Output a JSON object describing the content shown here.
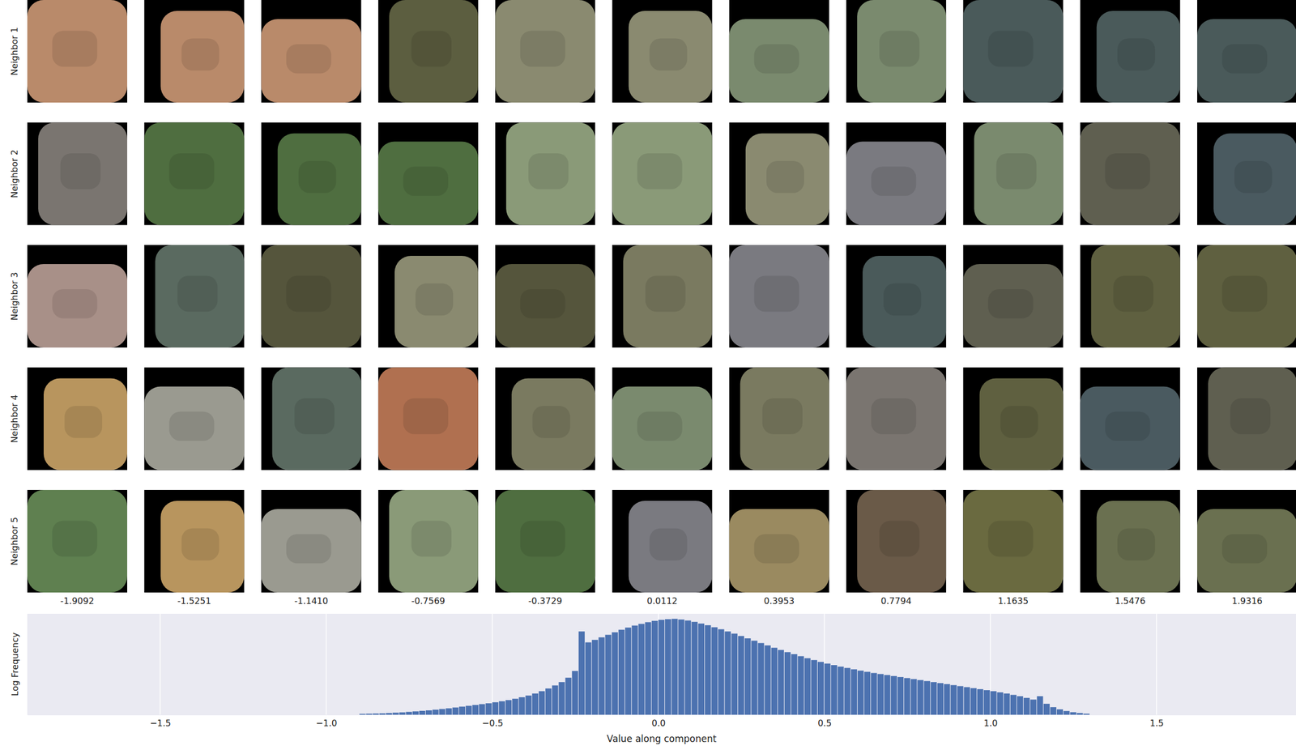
{
  "chart_data": {
    "type": "histogram",
    "rows": [
      "Neighbor 1",
      "Neighbor 2",
      "Neighbor 3",
      "Neighbor 4",
      "Neighbor 5"
    ],
    "columns": [
      {
        "value": -1.9092,
        "label": "-1.9092"
      },
      {
        "value": -1.5251,
        "label": "-1.5251"
      },
      {
        "value": -1.141,
        "label": "-1.1410"
      },
      {
        "value": -0.7569,
        "label": "-0.7569"
      },
      {
        "value": -0.3729,
        "label": "-0.3729"
      },
      {
        "value": 0.0112,
        "label": "0.0112"
      },
      {
        "value": 0.3953,
        "label": "0.3953"
      },
      {
        "value": 0.7794,
        "label": "0.7794"
      },
      {
        "value": 1.1635,
        "label": "1.1635"
      },
      {
        "value": 1.5476,
        "label": "1.5476"
      },
      {
        "value": 1.9316,
        "label": "1.9316"
      }
    ],
    "patch_colors": [
      [
        "#b98a6a",
        "#b98a6a",
        "#b98a6a",
        "#5c5e40",
        "#8a8a70",
        "#8a8a70",
        "#7a8a6e",
        "#7a8a6e",
        "#4a5a5a",
        "#4a5a5a",
        "#4a5a5a"
      ],
      [
        "#7a7570",
        "#4f6e40",
        "#4f6e40",
        "#4f6e40",
        "#8a9a78",
        "#8a9a78",
        "#8a8a70",
        "#7a7a80",
        "#7a8a6e",
        "#5f5f50",
        "#4a5a60"
      ],
      [
        "#a89088",
        "#5a6a60",
        "#55553c",
        "#8a8a70",
        "#55553c",
        "#7a7a60",
        "#7a7a80",
        "#4a5a5a",
        "#5f5f50",
        "#5f6040",
        "#5f6040"
      ],
      [
        "#b8955e",
        "#9a9a90",
        "#5a6a60",
        "#b07050",
        "#7a7a60",
        "#7a8a6e",
        "#7a7a60",
        "#7a7570",
        "#5f6040",
        "#4a5a60",
        "#5f5f50"
      ],
      [
        "#5f8050",
        "#b8955e",
        "#9a9a90",
        "#8a9a78",
        "#4f6e40",
        "#7a7a80",
        "#9a8a60",
        "#6a5a48",
        "#6a6a40",
        "#6a7050",
        "#6a7050"
      ]
    ],
    "bins": [
      -0.9,
      -0.88,
      -0.86,
      -0.84,
      -0.82,
      -0.8,
      -0.78,
      -0.76,
      -0.74,
      -0.72,
      -0.7,
      -0.68,
      -0.66,
      -0.64,
      -0.62,
      -0.6,
      -0.58,
      -0.56,
      -0.54,
      -0.52,
      -0.5,
      -0.48,
      -0.46,
      -0.44,
      -0.42,
      -0.4,
      -0.38,
      -0.36,
      -0.34,
      -0.32,
      -0.3,
      -0.28,
      -0.26,
      -0.24,
      -0.22,
      -0.2,
      -0.18,
      -0.16,
      -0.14,
      -0.12,
      -0.1,
      -0.08,
      -0.06,
      -0.04,
      -0.02,
      0,
      0.02,
      0.04,
      0.06,
      0.08,
      0.1,
      0.12,
      0.14,
      0.16,
      0.18,
      0.2,
      0.22,
      0.24,
      0.26,
      0.28,
      0.3,
      0.32,
      0.34,
      0.36,
      0.38,
      0.4,
      0.42,
      0.44,
      0.46,
      0.48,
      0.5,
      0.52,
      0.54,
      0.56,
      0.58,
      0.6,
      0.62,
      0.64,
      0.66,
      0.68,
      0.7,
      0.72,
      0.74,
      0.76,
      0.78,
      0.8,
      0.82,
      0.84,
      0.86,
      0.88,
      0.9,
      0.92,
      0.94,
      0.96,
      0.98,
      1,
      1.02,
      1.04,
      1.06,
      1.08,
      1.1,
      1.12,
      1.14,
      1.16,
      1.18,
      1.2,
      1.22,
      1.24,
      1.26,
      1.28,
      1.3
    ],
    "values": [
      0.05,
      0.06,
      0.07,
      0.08,
      0.1,
      0.12,
      0.14,
      0.17,
      0.2,
      0.23,
      0.26,
      0.3,
      0.34,
      0.38,
      0.43,
      0.48,
      0.53,
      0.58,
      0.63,
      0.68,
      0.74,
      0.8,
      0.87,
      0.95,
      1.04,
      1.14,
      1.26,
      1.4,
      1.56,
      1.74,
      1.94,
      2.2,
      2.6,
      4.95,
      4.3,
      4.45,
      4.6,
      4.75,
      4.9,
      5.05,
      5.18,
      5.3,
      5.4,
      5.5,
      5.58,
      5.64,
      5.68,
      5.7,
      5.66,
      5.6,
      5.52,
      5.42,
      5.32,
      5.2,
      5.08,
      4.95,
      4.82,
      4.68,
      4.54,
      4.4,
      4.26,
      4.12,
      3.98,
      3.85,
      3.72,
      3.6,
      3.48,
      3.36,
      3.25,
      3.14,
      3.04,
      2.95,
      2.86,
      2.78,
      2.7,
      2.62,
      2.55,
      2.48,
      2.42,
      2.36,
      2.3,
      2.24,
      2.18,
      2.12,
      2.06,
      2.0,
      1.94,
      1.88,
      1.82,
      1.76,
      1.7,
      1.64,
      1.58,
      1.52,
      1.46,
      1.4,
      1.33,
      1.26,
      1.18,
      1.1,
      1.0,
      0.9,
      1.1,
      0.65,
      0.45,
      0.32,
      0.22,
      0.15,
      0.1,
      0.06
    ],
    "color": "#4c72b0",
    "xlabel": "Value along component",
    "ylabel": "Log Frequency",
    "xlim": [
      -1.9,
      1.92
    ],
    "ylim": [
      0,
      6
    ],
    "xticks": [
      {
        "value": -1.5,
        "label": "−1.5"
      },
      {
        "value": -1,
        "label": "−1.0"
      },
      {
        "value": -0.5,
        "label": "−0.5"
      },
      {
        "value": 0,
        "label": "0.0"
      },
      0.5,
      {
        "value": 1,
        "label": "1.0"
      },
      1.5
    ],
    "grid": true,
    "tick_labels": "x"
  }
}
